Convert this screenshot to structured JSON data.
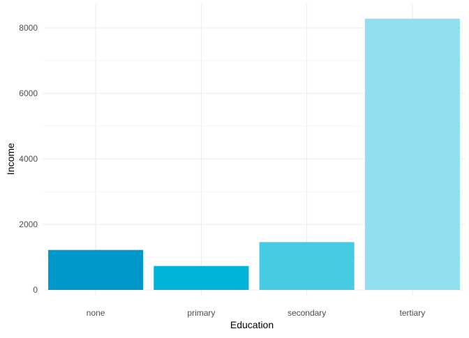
{
  "chart_data": {
    "type": "bar",
    "title": "",
    "xlabel": "Education",
    "ylabel": "Income",
    "categories": [
      "none",
      "primary",
      "secondary",
      "tertiary"
    ],
    "values": [
      1220,
      730,
      1460,
      8280
    ],
    "colors": [
      "#0098c9",
      "#00b4d8",
      "#48cae4",
      "#90e0ef"
    ],
    "ylim": [
      0,
      8000
    ],
    "yticks": [
      0,
      2000,
      4000,
      6000,
      8000
    ],
    "ytick_labels": [
      "0",
      "2000",
      "4000",
      "6000",
      "8000"
    ],
    "grid": true,
    "theme": "minimal"
  }
}
